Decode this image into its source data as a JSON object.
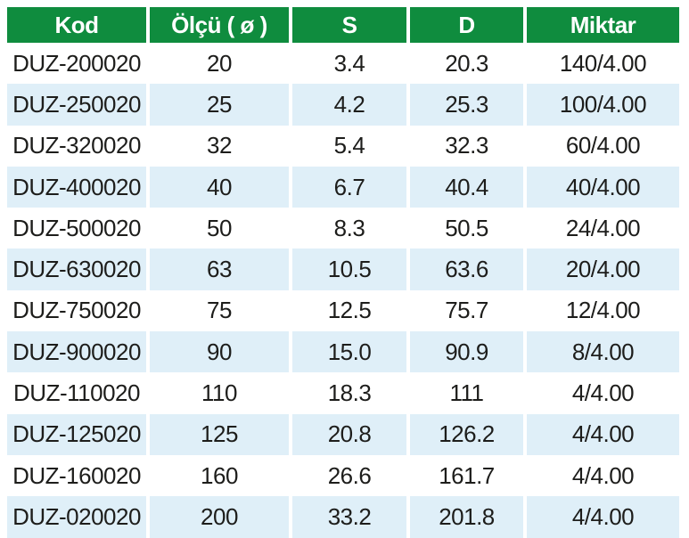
{
  "table": {
    "columns": [
      {
        "key": "kod",
        "label": "Kod"
      },
      {
        "key": "olcu",
        "label": "Ölçü ( ø )"
      },
      {
        "key": "s",
        "label": "S"
      },
      {
        "key": "d",
        "label": "D"
      },
      {
        "key": "miktar",
        "label": "Miktar"
      }
    ],
    "rows": [
      [
        "DUZ-200020",
        "20",
        "3.4",
        "20.3",
        "140/4.00"
      ],
      [
        "DUZ-250020",
        "25",
        "4.2",
        "25.3",
        "100/4.00"
      ],
      [
        "DUZ-320020",
        "32",
        "5.4",
        "32.3",
        "60/4.00"
      ],
      [
        "DUZ-400020",
        "40",
        "6.7",
        "40.4",
        "40/4.00"
      ],
      [
        "DUZ-500020",
        "50",
        "8.3",
        "50.5",
        "24/4.00"
      ],
      [
        "DUZ-630020",
        "63",
        "10.5",
        "63.6",
        "20/4.00"
      ],
      [
        "DUZ-750020",
        "75",
        "12.5",
        "75.7",
        "12/4.00"
      ],
      [
        "DUZ-900020",
        "90",
        "15.0",
        "90.9",
        "8/4.00"
      ],
      [
        "DUZ-110020",
        "110",
        "18.3",
        "111",
        "4/4.00"
      ],
      [
        "DUZ-125020",
        "125",
        "20.8",
        "126.2",
        "4/4.00"
      ],
      [
        "DUZ-160020",
        "160",
        "26.6",
        "161.7",
        "4/4.00"
      ],
      [
        "DUZ-020020",
        "200",
        "33.2",
        "201.8",
        "4/4.00"
      ]
    ]
  },
  "colors": {
    "header_bg": "#0f8c3e",
    "header_text": "#ffffff",
    "row_bg": "#ffffff",
    "row_alt_bg": "#dfeff8",
    "body_text": "#1d1d1b"
  },
  "chart_data": {
    "type": "table",
    "title": "",
    "columns": [
      "Kod",
      "Ölçü ( ø )",
      "S",
      "D",
      "Miktar"
    ],
    "rows": [
      [
        "DUZ-200020",
        20,
        3.4,
        20.3,
        "140/4.00"
      ],
      [
        "DUZ-250020",
        25,
        4.2,
        25.3,
        "100/4.00"
      ],
      [
        "DUZ-320020",
        32,
        5.4,
        32.3,
        "60/4.00"
      ],
      [
        "DUZ-400020",
        40,
        6.7,
        40.4,
        "40/4.00"
      ],
      [
        "DUZ-500020",
        50,
        8.3,
        50.5,
        "24/4.00"
      ],
      [
        "DUZ-630020",
        63,
        10.5,
        63.6,
        "20/4.00"
      ],
      [
        "DUZ-750020",
        75,
        12.5,
        75.7,
        "12/4.00"
      ],
      [
        "DUZ-900020",
        90,
        15.0,
        90.9,
        "8/4.00"
      ],
      [
        "DUZ-110020",
        110,
        18.3,
        111,
        "4/4.00"
      ],
      [
        "DUZ-125020",
        125,
        20.8,
        126.2,
        "4/4.00"
      ],
      [
        "DUZ-160020",
        160,
        26.6,
        161.7,
        "4/4.00"
      ],
      [
        "DUZ-020020",
        200,
        33.2,
        201.8,
        "4/4.00"
      ]
    ]
  }
}
